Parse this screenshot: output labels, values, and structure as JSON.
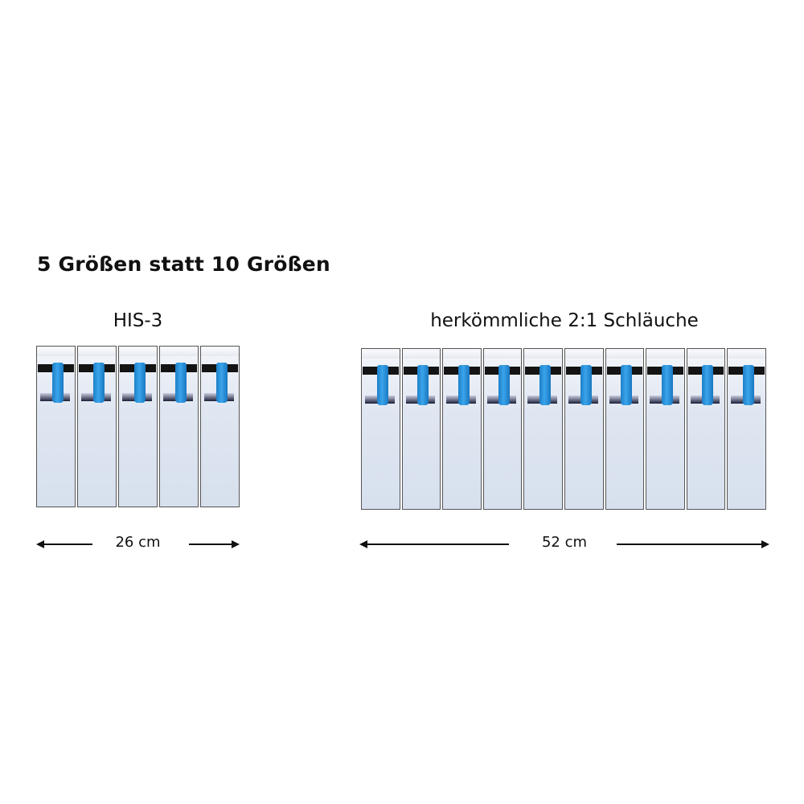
{
  "title": "5 Größen statt 10 Größen",
  "left": {
    "label": "HIS-3",
    "count": 5,
    "measure": "26 cm"
  },
  "right": {
    "label": "herkömmliche 2:1 Schläuche",
    "count": 10,
    "measure": "52 cm"
  },
  "colors": {
    "tube": "#2a90d8",
    "band": "#141414",
    "box": "#dfe6f1"
  }
}
